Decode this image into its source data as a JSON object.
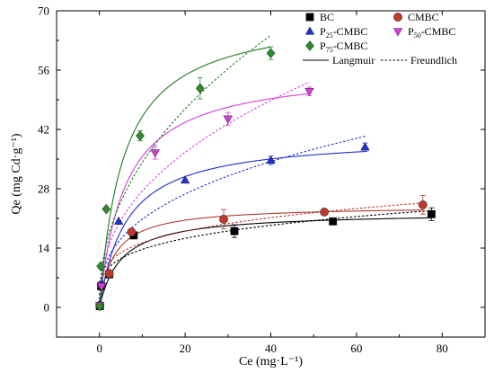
{
  "chart_data": {
    "type": "scatter",
    "xlabel": "Ce (mg·L⁻¹)",
    "ylabel": "Qe (mg Cd·g⁻¹)",
    "xlim": [
      -10,
      90
    ],
    "ylim": [
      -7,
      70
    ],
    "xticks": [
      0,
      20,
      40,
      60,
      80
    ],
    "yticks": [
      0,
      14,
      28,
      42,
      56,
      70
    ],
    "grid": false,
    "legend_position": "top-right",
    "fit_legend": {
      "langmuir": "Langmuir",
      "freundlich": "Freundlich"
    },
    "series": [
      {
        "name": "BC",
        "name_main": "BC",
        "name_sub": "",
        "name_tail": "",
        "marker": "square",
        "color": "#000000",
        "curve_color": "#000000",
        "x": [
          0.1,
          0.4,
          2.3,
          8.0,
          31.5,
          54.5,
          77.5
        ],
        "y": [
          0.3,
          5.0,
          7.8,
          17.0,
          18.0,
          20.3,
          22.0
        ],
        "err": [
          0,
          0,
          0,
          0.5,
          1.5,
          0,
          1.5
        ],
        "langmuir": {
          "qmax": 22.5,
          "k": 0.2
        },
        "freundlich": {
          "kf": 7.7,
          "n": 4.0
        }
      },
      {
        "name": "CMBC",
        "name_main": "CMBC",
        "name_sub": "",
        "name_tail": "",
        "marker": "circle",
        "color": "#c0392b",
        "curve_color": "#b03a2e",
        "x": [
          0.1,
          0.4,
          2.3,
          7.5,
          29.0,
          52.5,
          75.5
        ],
        "y": [
          0.5,
          5.3,
          8.0,
          17.8,
          20.8,
          22.5,
          24.2
        ],
        "err": [
          0,
          0,
          0,
          0.5,
          2.3,
          0,
          2.2
        ],
        "langmuir": {
          "qmax": 24.0,
          "k": 0.3
        },
        "freundlich": {
          "kf": 8.8,
          "n": 4.2
        }
      },
      {
        "name": "P25-CMBC",
        "name_main": "P",
        "name_sub": "25",
        "name_tail": "-CMBC",
        "marker": "triangle-up",
        "color": "#1f2fd1",
        "curve_color": "#1f2fd1",
        "x": [
          0.1,
          0.5,
          4.5,
          20.0,
          40.0,
          62.0
        ],
        "y": [
          0.8,
          5.5,
          20.3,
          30.0,
          34.7,
          37.8
        ],
        "err": [
          0,
          0,
          0,
          0,
          1.0,
          1.0
        ],
        "langmuir": {
          "qmax": 40.5,
          "k": 0.16
        },
        "freundlich": {
          "kf": 9.0,
          "n": 2.75
        }
      },
      {
        "name": "P50-CMBC",
        "name_main": "P",
        "name_sub": "50",
        "name_tail": "-CMBC",
        "marker": "triangle-down",
        "color": "#d63cdc",
        "curve_color": "#d63cdc",
        "x": [
          0.1,
          0.5,
          13.0,
          30.0,
          49.0
        ],
        "y": [
          0.5,
          5.0,
          36.5,
          44.5,
          51.0
        ],
        "err": [
          0,
          0,
          1.5,
          1.5,
          1.0
        ],
        "langmuir": {
          "qmax": 56.5,
          "k": 0.17
        },
        "freundlich": {
          "kf": 10.5,
          "n": 2.4
        }
      },
      {
        "name": "P75-CMBC",
        "name_main": "P",
        "name_sub": "75",
        "name_tail": "-CMBC",
        "marker": "diamond",
        "color": "#2e8b2e",
        "curve_color": "#1e7b1e",
        "x": [
          0.1,
          0.3,
          1.6,
          9.5,
          23.5,
          40.0
        ],
        "y": [
          0.3,
          9.7,
          23.2,
          40.5,
          51.7,
          60.0
        ],
        "err": [
          0,
          0,
          0,
          1.2,
          2.5,
          1.5
        ],
        "langmuir": {
          "qmax": 70.0,
          "k": 0.18
        },
        "freundlich": {
          "kf": 12.0,
          "n": 2.2
        }
      }
    ]
  }
}
